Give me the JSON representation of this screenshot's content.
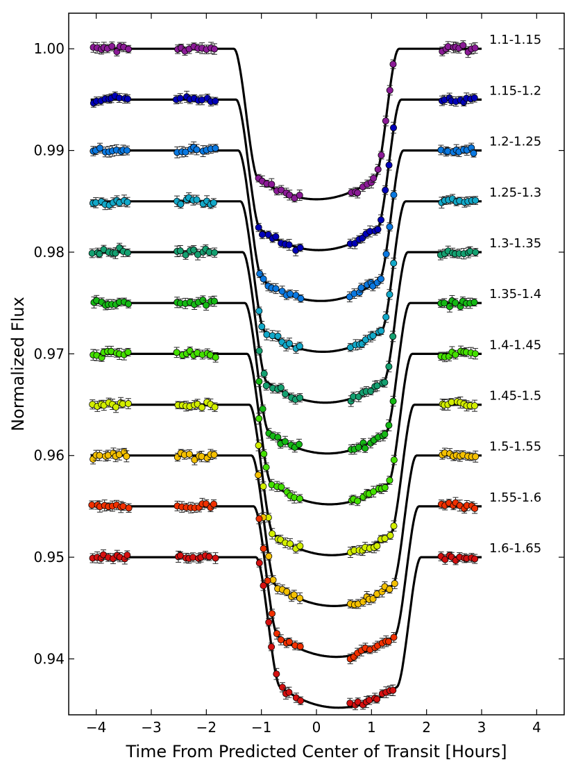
{
  "chart_data": {
    "type": "scatter",
    "title": "",
    "xlabel": "Time From Predicted Center of Transit [Hours]",
    "ylabel": "Normalized Flux",
    "xlim": [
      -4.5,
      4.5
    ],
    "ylim": [
      0.9345,
      1.0035
    ],
    "xticks": [
      -4,
      -3,
      -2,
      -1,
      0,
      1,
      2,
      3,
      4
    ],
    "xtick_labels": [
      "−4",
      "−3",
      "−2",
      "−1",
      "0",
      "1",
      "2",
      "3",
      "4"
    ],
    "yticks": [
      0.94,
      0.95,
      0.96,
      0.97,
      0.98,
      0.99,
      1.0
    ],
    "ytick_labels": [
      "0.94",
      "0.95",
      "0.96",
      "0.97",
      "0.98",
      "0.99",
      "1.00"
    ],
    "grid": false,
    "transit_model": {
      "x_range": [
        -4.1,
        3.0
      ],
      "ingress_start": -1.5,
      "ingress_end": -1.05,
      "egress_start": 1.05,
      "egress_end": 1.5,
      "depth_center": 0.0148,
      "depth_edge": 0.0128,
      "seed": 12345
    },
    "series": [
      {
        "name": "1.1-1.15",
        "color": "#8b1a96",
        "baseline": 1.0,
        "offset": 0.0
      },
      {
        "name": "1.15-1.2",
        "color": "#0000b8",
        "baseline": 0.995,
        "offset": 0.04
      },
      {
        "name": "1.2-1.25",
        "color": "#0a78e0",
        "baseline": 0.99,
        "offset": 0.08
      },
      {
        "name": "1.25-1.3",
        "color": "#12a8c8",
        "baseline": 0.985,
        "offset": 0.12
      },
      {
        "name": "1.3-1.35",
        "color": "#14a070",
        "baseline": 0.98,
        "offset": 0.16
      },
      {
        "name": "1.35-1.4",
        "color": "#14b814",
        "baseline": 0.975,
        "offset": 0.2
      },
      {
        "name": "1.4-1.45",
        "color": "#44e000",
        "baseline": 0.97,
        "offset": 0.24
      },
      {
        "name": "1.45-1.5",
        "color": "#d2ee00",
        "baseline": 0.965,
        "offset": 0.28
      },
      {
        "name": "1.5-1.55",
        "color": "#f4c000",
        "baseline": 0.96,
        "offset": 0.32
      },
      {
        "name": "1.55-1.6",
        "color": "#f03000",
        "baseline": 0.955,
        "offset": 0.36
      },
      {
        "name": "1.6-1.65",
        "color": "#d41010",
        "baseline": 0.95,
        "offset": 0.4
      }
    ]
  }
}
